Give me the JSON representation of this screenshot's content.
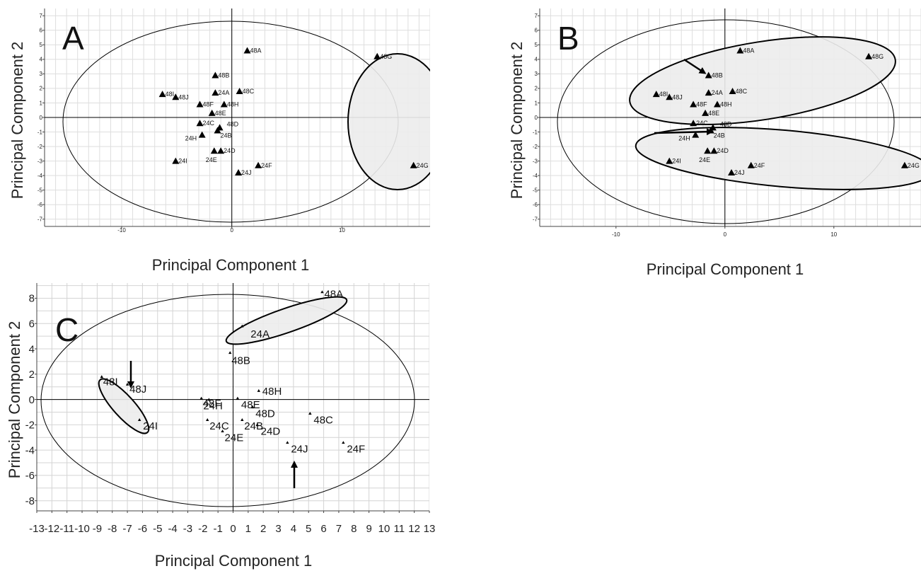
{
  "chart_data": [
    {
      "type": "scatter",
      "panel": "A",
      "xlabel": "Principal Component 1",
      "ylabel": "Principal Component 2",
      "xlim": [
        -17,
        18
      ],
      "ylim": [
        -7.5,
        7.5
      ],
      "xticks": [
        -10,
        0,
        10
      ],
      "yticks": [
        -7,
        -6,
        -5,
        -4,
        -3,
        -2,
        -1,
        0,
        1,
        2,
        3,
        4,
        5,
        6,
        7
      ],
      "grid": true,
      "points": [
        {
          "label": "48A",
          "x": 1.4,
          "y": 4.6
        },
        {
          "label": "48G",
          "x": 13.2,
          "y": 4.2
        },
        {
          "label": "48B",
          "x": -1.5,
          "y": 2.9
        },
        {
          "label": "48C",
          "x": 0.7,
          "y": 1.8
        },
        {
          "label": "24A",
          "x": -1.5,
          "y": 1.7
        },
        {
          "label": "48I",
          "x": -6.3,
          "y": 1.6
        },
        {
          "label": "48J",
          "x": -5.1,
          "y": 1.4
        },
        {
          "label": "48F",
          "x": -2.9,
          "y": 0.9
        },
        {
          "label": "48H",
          "x": -0.7,
          "y": 0.9
        },
        {
          "label": "48E",
          "x": -1.8,
          "y": 0.3
        },
        {
          "label": "24C",
          "x": -2.9,
          "y": -0.4
        },
        {
          "label": "48D",
          "x": -1.1,
          "y": -0.7
        },
        {
          "label": "24B",
          "x": -1.3,
          "y": -0.9
        },
        {
          "label": "24H",
          "x": -2.7,
          "y": -1.2
        },
        {
          "label": "24D",
          "x": -1.0,
          "y": -2.3
        },
        {
          "label": "24E",
          "x": -1.6,
          "y": -2.3
        },
        {
          "label": "24I",
          "x": -5.1,
          "y": -3.0
        },
        {
          "label": "24F",
          "x": 2.4,
          "y": -3.3
        },
        {
          "label": "24J",
          "x": 0.6,
          "y": -3.8
        },
        {
          "label": "24G",
          "x": 16.5,
          "y": -3.3
        }
      ]
    },
    {
      "type": "scatter",
      "panel": "B",
      "xlabel": "Principal Component 1",
      "ylabel": "Principal Component 2",
      "xlim": [
        -17,
        18
      ],
      "ylim": [
        -7.5,
        7.5
      ],
      "xticks": [
        -10,
        0,
        10
      ],
      "yticks": [
        -7,
        -6,
        -5,
        -4,
        -3,
        -2,
        -1,
        0,
        1,
        2,
        3,
        4,
        5,
        6,
        7
      ],
      "grid": true,
      "points": [
        {
          "label": "48A",
          "x": 1.4,
          "y": 4.6
        },
        {
          "label": "48G",
          "x": 13.2,
          "y": 4.2
        },
        {
          "label": "48B",
          "x": -1.5,
          "y": 2.9
        },
        {
          "label": "48C",
          "x": 0.7,
          "y": 1.8
        },
        {
          "label": "24A",
          "x": -1.5,
          "y": 1.7
        },
        {
          "label": "48I",
          "x": -6.3,
          "y": 1.6
        },
        {
          "label": "48J",
          "x": -5.1,
          "y": 1.4
        },
        {
          "label": "48F",
          "x": -2.9,
          "y": 0.9
        },
        {
          "label": "48H",
          "x": -0.7,
          "y": 0.9
        },
        {
          "label": "48E",
          "x": -1.8,
          "y": 0.3
        },
        {
          "label": "24C",
          "x": -2.9,
          "y": -0.4
        },
        {
          "label": "48D",
          "x": -1.1,
          "y": -0.7
        },
        {
          "label": "24B",
          "x": -1.3,
          "y": -0.9
        },
        {
          "label": "24H",
          "x": -2.7,
          "y": -1.2
        },
        {
          "label": "24D",
          "x": -1.0,
          "y": -2.3
        },
        {
          "label": "24E",
          "x": -1.6,
          "y": -2.3
        },
        {
          "label": "24I",
          "x": -5.1,
          "y": -3.0
        },
        {
          "label": "24F",
          "x": 2.4,
          "y": -3.3
        },
        {
          "label": "24J",
          "x": 0.6,
          "y": -3.8
        },
        {
          "label": "24G",
          "x": 16.5,
          "y": -3.3
        }
      ]
    },
    {
      "type": "scatter",
      "panel": "C",
      "xlabel": "Principal Component 1",
      "ylabel": "Principal Component 2",
      "xlim": [
        -13,
        13
      ],
      "ylim": [
        -8.8,
        9.2
      ],
      "xticks": [
        -13,
        -12,
        -11,
        -10,
        -9,
        -8,
        -7,
        -6,
        -5,
        -4,
        -3,
        -2,
        -1,
        0,
        1,
        2,
        3,
        4,
        5,
        6,
        7,
        8,
        9,
        10,
        11,
        12,
        13
      ],
      "yticks": [
        -8,
        -6,
        -4,
        -2,
        0,
        2,
        4,
        6,
        8
      ],
      "grid": true,
      "points": [
        {
          "label": "48A",
          "x": 5.9,
          "y": 8.5
        },
        {
          "label": "24A",
          "x": 0.6,
          "y": 5.8
        },
        {
          "label": "48B",
          "x": -0.2,
          "y": 3.7
        },
        {
          "label": "48I",
          "x": -8.7,
          "y": 1.8
        },
        {
          "label": "48J",
          "x": -7.0,
          "y": 1.2
        },
        {
          "label": "48H",
          "x": 1.7,
          "y": 0.7
        },
        {
          "label": "48F",
          "x": -2.1,
          "y": 0.1
        },
        {
          "label": "24H",
          "x": -1.6,
          "y": 0.0
        },
        {
          "label": "48E",
          "x": 0.3,
          "y": 0.1
        },
        {
          "label": "48D",
          "x": 1.3,
          "y": -0.6
        },
        {
          "label": "48C",
          "x": 5.1,
          "y": -1.1
        },
        {
          "label": "24I",
          "x": -6.2,
          "y": -1.6
        },
        {
          "label": "24C",
          "x": -1.7,
          "y": -1.6
        },
        {
          "label": "24B",
          "x": 0.6,
          "y": -1.6
        },
        {
          "label": "24D",
          "x": 1.6,
          "y": -2.0
        },
        {
          "label": "24E",
          "x": -0.7,
          "y": -2.5
        },
        {
          "label": "24J",
          "x": 3.6,
          "y": -3.4
        },
        {
          "label": "24F",
          "x": 7.3,
          "y": -3.4
        }
      ]
    }
  ]
}
